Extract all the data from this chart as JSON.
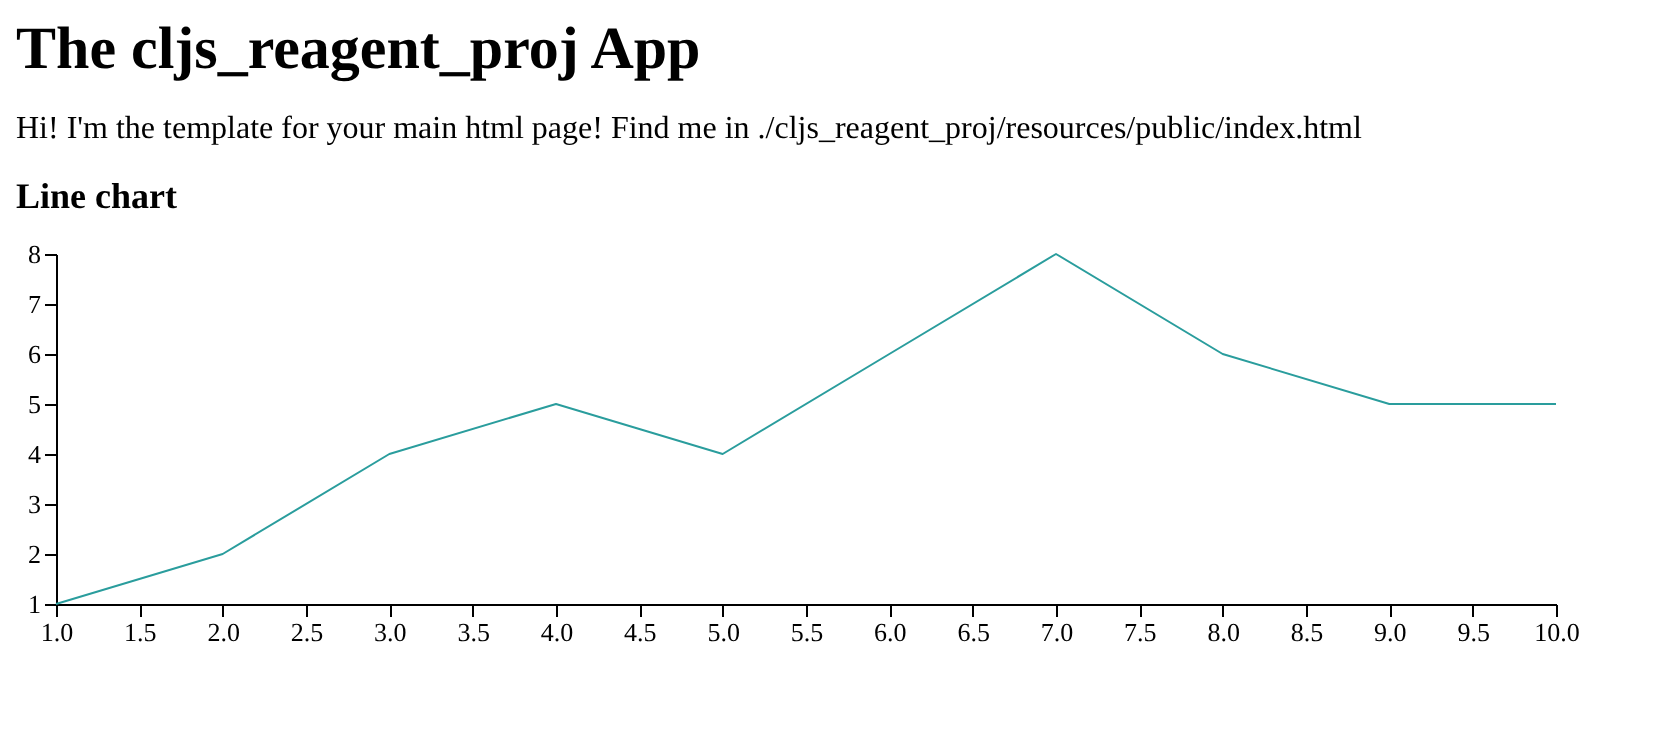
{
  "chart_data": {
    "type": "line",
    "title": "The cljs_reagent_proj App",
    "subtitle": "Hi! I'm the template for your main html page! Find me in ./cljs_reagent_proj/resources/public/index.html",
    "annotations": [
      "Line chart"
    ],
    "x": [
      1,
      2,
      3,
      4,
      5,
      6,
      7,
      8,
      9,
      10
    ],
    "series": [
      {
        "color": "#2a9d9d",
        "values": [
          1,
          2,
          4,
          5,
          4,
          6,
          8,
          6,
          5,
          5
        ]
      }
    ],
    "xlim": [
      1,
      10
    ],
    "xticks": [
      {
        "value": 1,
        "label": "1.0"
      },
      {
        "value": 1.5,
        "label": "1.5"
      },
      {
        "value": 2,
        "label": "2.0"
      },
      {
        "value": 2.5,
        "label": "2.5"
      },
      {
        "value": 3,
        "label": "3.0"
      },
      {
        "value": 3.5,
        "label": "3.5"
      },
      {
        "value": 4,
        "label": "4.0"
      },
      {
        "value": 4.5,
        "label": "4.5"
      },
      {
        "value": 5,
        "label": "5.0"
      },
      {
        "value": 5.5,
        "label": "5.5"
      },
      {
        "value": 6,
        "label": "6.0"
      },
      {
        "value": 6.5,
        "label": "6.5"
      },
      {
        "value": 7,
        "label": "7.0"
      },
      {
        "value": 7.5,
        "label": "7.5"
      },
      {
        "value": 8,
        "label": "8.0"
      },
      {
        "value": 8.5,
        "label": "8.5"
      },
      {
        "value": 9,
        "label": "9.0"
      },
      {
        "value": 9.5,
        "label": "9.5"
      },
      {
        "value": 10,
        "label": "10.0"
      }
    ],
    "ylim": [
      1,
      8
    ],
    "yticks": [
      1,
      2,
      3,
      4,
      5,
      6,
      7,
      8
    ],
    "grid": false,
    "marker": "none",
    "line_style": "solid"
  }
}
